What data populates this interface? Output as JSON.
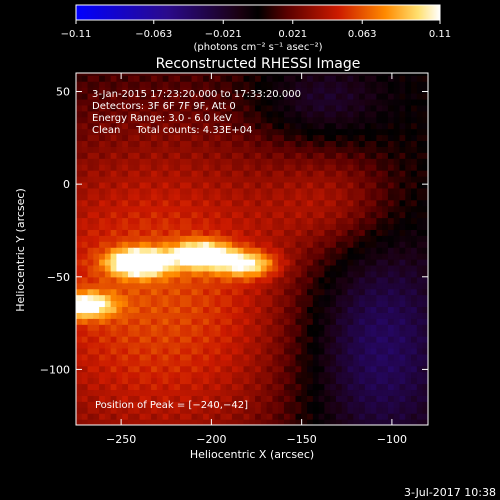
{
  "chart_data": {
    "type": "heatmap",
    "title": "Reconstructed RHESSI Image",
    "colorbar": {
      "min": -0.11,
      "max": 0.11,
      "tick_labels": [
        "−0.11",
        "−0.063",
        "−0.021",
        "0.021",
        "0.063",
        "0.11"
      ],
      "ticks": [
        -0.11,
        -0.063,
        -0.021,
        0.021,
        0.063,
        0.11
      ],
      "units_label": "(photons cm⁻² s⁻¹ asec⁻²)"
    },
    "xlabel": "Heliocentric X (arcsec)",
    "ylabel": "Heliocentric Y (arcsec)",
    "xlim": [
      -275,
      -80
    ],
    "ylim": [
      -130,
      60
    ],
    "x_ticks": [
      -250,
      -200,
      -150,
      -100
    ],
    "x_tick_labels": [
      "−250",
      "−200",
      "−150",
      "−100"
    ],
    "y_ticks": [
      50,
      0,
      -50,
      -100
    ],
    "y_tick_labels": [
      "50",
      "0",
      "−50",
      "−100"
    ],
    "info_lines": [
      "3-Jan-2015 17:23:20.000 to 17:33:20.000",
      "Detectors: 3F 6F 7F 9F, Att 0",
      "Energy Range: 3.0 - 6.0 keV",
      "Clean     Total counts: 4.33E+04"
    ],
    "peak_label": "Position of Peak = [−240,−42]",
    "peak": [
      -240,
      -42
    ],
    "sources": [
      {
        "x": -240,
        "y": -42,
        "amp": 1.0
      },
      {
        "x": -205,
        "y": -38,
        "amp": 0.85
      },
      {
        "x": -270,
        "y": -65,
        "amp": 0.7
      },
      {
        "x": -180,
        "y": -43,
        "amp": 0.6
      }
    ]
  },
  "footer_date": "3-Jul-2017 10:38"
}
